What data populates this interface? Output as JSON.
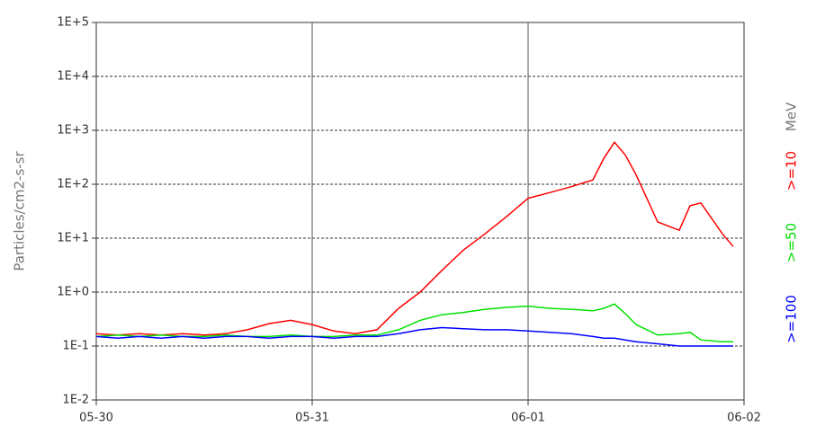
{
  "chart_data": {
    "type": "line",
    "y_label": "Particles/cm2-s-sr",
    "legend_unit": "MeV",
    "log_scale_y": true,
    "grid": true,
    "x": [
      0,
      0.1,
      0.2,
      0.3,
      0.4,
      0.5,
      0.6,
      0.7,
      0.8,
      0.9,
      1.0,
      1.1,
      1.2,
      1.3,
      1.4,
      1.5,
      1.6,
      1.7,
      1.8,
      1.9,
      2.0,
      2.1,
      2.2,
      2.3,
      2.35,
      2.4,
      2.45,
      2.5,
      2.6,
      2.7,
      2.75,
      2.8,
      2.9,
      2.95
    ],
    "xlim": [
      0,
      3
    ],
    "xticks": [
      {
        "value": 0,
        "label": "05-30"
      },
      {
        "value": 1,
        "label": "05-31"
      },
      {
        "value": 2,
        "label": "06-01"
      },
      {
        "value": 3,
        "label": "06-02"
      }
    ],
    "ylim": [
      0.01,
      100000
    ],
    "yticks": [
      {
        "value": 0.01,
        "label": "1E-2"
      },
      {
        "value": 0.1,
        "label": "1E-1"
      },
      {
        "value": 1,
        "label": "1E+0"
      },
      {
        "value": 10,
        "label": "1E+1"
      },
      {
        "value": 100,
        "label": "1E+2"
      },
      {
        "value": 1000,
        "label": "1E+3"
      },
      {
        "value": 10000,
        "label": "1E+4"
      },
      {
        "value": 100000,
        "label": "1E+5"
      }
    ],
    "series": [
      {
        "name": ">=10",
        "color": "#ff0000",
        "values": [
          0.17,
          0.16,
          0.17,
          0.16,
          0.17,
          0.16,
          0.17,
          0.2,
          0.26,
          0.3,
          0.25,
          0.19,
          0.17,
          0.2,
          0.5,
          1.0,
          2.5,
          6,
          12,
          25,
          55,
          70,
          90,
          120,
          300,
          600,
          350,
          150,
          20,
          14,
          40,
          45,
          12,
          7
        ]
      },
      {
        "name": ">=50",
        "color": "#00e000",
        "values": [
          0.15,
          0.16,
          0.15,
          0.16,
          0.15,
          0.15,
          0.16,
          0.15,
          0.15,
          0.16,
          0.15,
          0.15,
          0.16,
          0.16,
          0.2,
          0.3,
          0.38,
          0.42,
          0.48,
          0.52,
          0.55,
          0.5,
          0.48,
          0.45,
          0.5,
          0.6,
          0.4,
          0.25,
          0.16,
          0.17,
          0.18,
          0.13,
          0.12,
          0.12
        ]
      },
      {
        "name": ">=100",
        "color": "#0000ff",
        "values": [
          0.15,
          0.14,
          0.15,
          0.14,
          0.15,
          0.14,
          0.15,
          0.15,
          0.14,
          0.15,
          0.15,
          0.14,
          0.15,
          0.15,
          0.17,
          0.2,
          0.22,
          0.21,
          0.2,
          0.2,
          0.19,
          0.18,
          0.17,
          0.15,
          0.14,
          0.14,
          0.13,
          0.12,
          0.11,
          0.1,
          0.1,
          0.1,
          0.1,
          0.1
        ]
      }
    ]
  }
}
